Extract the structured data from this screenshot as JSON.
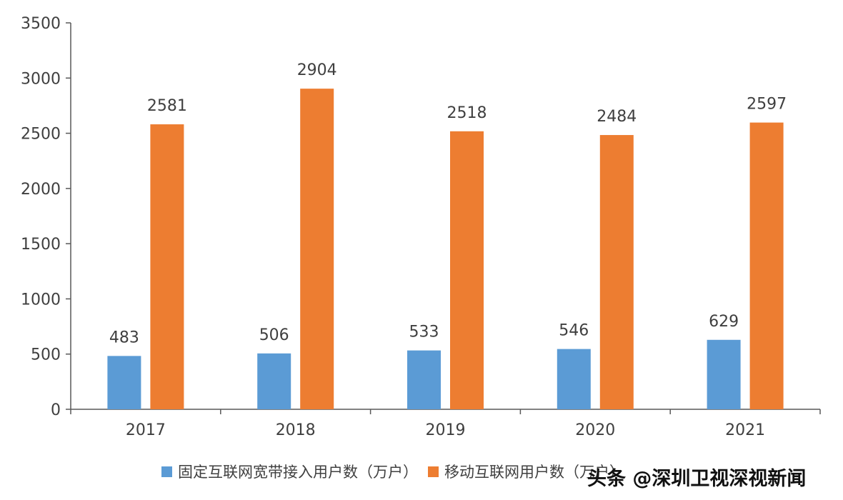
{
  "chart_data": {
    "type": "bar",
    "title": "",
    "xlabel": "",
    "ylabel": "",
    "categories": [
      "2017",
      "2018",
      "2019",
      "2020",
      "2021"
    ],
    "series": [
      {
        "name": "固定互联网宽带接入用户数（万户）",
        "values": [
          483,
          506,
          533,
          546,
          629
        ],
        "color": "#5b9bd5"
      },
      {
        "name": "移动互联网用户数（万户）",
        "values": [
          2581,
          2904,
          2518,
          2484,
          2597
        ],
        "color": "#ed7d31"
      }
    ],
    "ylim": [
      0,
      3500
    ],
    "yticks": [
      "0",
      "500",
      "1000",
      "1500",
      "2000",
      "2500",
      "3000",
      "3500"
    ],
    "grid": false,
    "legend_position": "bottom"
  },
  "watermark": "头条 @深圳卫视深视新闻"
}
